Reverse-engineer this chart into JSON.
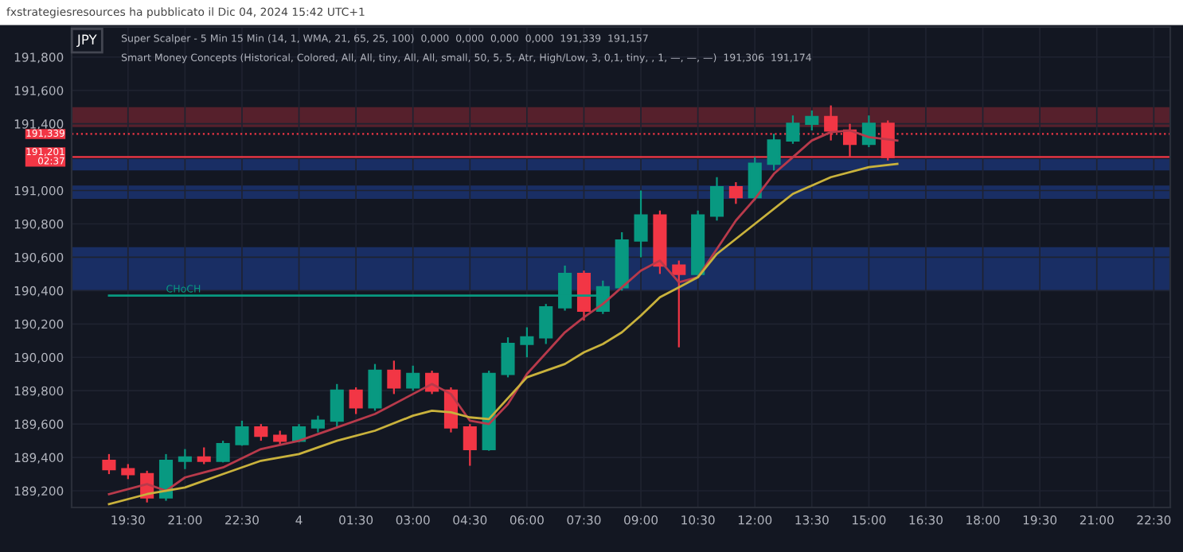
{
  "chart_data": {
    "type": "candlestick",
    "title": "JPY",
    "subtitle": "fxstrategiesresources ha pubblicato il Dic 04, 2024 15:42 UTC+1",
    "annotations": [
      "Super Scalper - 5 Min 15 Min (14, 1, WMA, 21, 65, 25, 100)  0,000  0,000  0,000  0,000  191,339  191,157",
      "Smart Money Concepts (Historical, Colored, All, All, tiny, All, All, small, 50, 5, 5, Atr, High/Low, 3, 0,1, tiny, , 1, —, —, —)  191,306  191,174",
      {
        "text": "CHoCH",
        "x": "2024-12-03T20:30",
        "y": 190370
      }
    ],
    "x": [
      "2024-12-03T19:00",
      "2024-12-03T19:30",
      "2024-12-03T20:00",
      "2024-12-03T20:30",
      "2024-12-03T21:00",
      "2024-12-03T21:30",
      "2024-12-03T22:00",
      "2024-12-03T22:30",
      "2024-12-03T23:00",
      "2024-12-03T23:30",
      "2024-12-04T00:00",
      "2024-12-04T00:30",
      "2024-12-04T01:00",
      "2024-12-04T01:30",
      "2024-12-04T02:00",
      "2024-12-04T02:30",
      "2024-12-04T03:00",
      "2024-12-04T03:30",
      "2024-12-04T04:00",
      "2024-12-04T04:30",
      "2024-12-04T05:00",
      "2024-12-04T05:30",
      "2024-12-04T06:00",
      "2024-12-04T06:30",
      "2024-12-04T07:00",
      "2024-12-04T07:30",
      "2024-12-04T08:00",
      "2024-12-04T08:30",
      "2024-12-04T09:00",
      "2024-12-04T09:30",
      "2024-12-04T10:00",
      "2024-12-04T10:30",
      "2024-12-04T11:00",
      "2024-12-04T11:30",
      "2024-12-04T12:00",
      "2024-12-04T12:30",
      "2024-12-04T13:00",
      "2024-12-04T13:30",
      "2024-12-04T14:00",
      "2024-12-04T14:30",
      "2024-12-04T15:00",
      "2024-12-04T15:30"
    ],
    "ohlc": [
      [
        189380,
        189420,
        189300,
        189330
      ],
      [
        189330,
        189360,
        189270,
        189300
      ],
      [
        189300,
        189320,
        189130,
        189160
      ],
      [
        189160,
        189420,
        189140,
        189380
      ],
      [
        189380,
        189450,
        189330,
        189400
      ],
      [
        189400,
        189460,
        189360,
        189380
      ],
      [
        189380,
        189500,
        189370,
        189480
      ],
      [
        189480,
        189620,
        189470,
        189580
      ],
      [
        189580,
        189600,
        189500,
        189530
      ],
      [
        189530,
        189560,
        189480,
        189500
      ],
      [
        189500,
        189600,
        189490,
        189580
      ],
      [
        189580,
        189650,
        189550,
        189620
      ],
      [
        189620,
        189840,
        189580,
        189800
      ],
      [
        189800,
        189820,
        189660,
        189700
      ],
      [
        189700,
        189960,
        189680,
        189920
      ],
      [
        189920,
        189980,
        189780,
        189820
      ],
      [
        189820,
        189950,
        189800,
        189900
      ],
      [
        189900,
        189920,
        189780,
        189800
      ],
      [
        189800,
        189820,
        189550,
        189580
      ],
      [
        189580,
        189600,
        189350,
        189450
      ],
      [
        189450,
        189920,
        189440,
        189900
      ],
      [
        189900,
        190120,
        189880,
        190080
      ],
      [
        190080,
        190180,
        190000,
        190120
      ],
      [
        190120,
        190320,
        190080,
        190300
      ],
      [
        190300,
        190550,
        190280,
        190500
      ],
      [
        190500,
        190520,
        190220,
        190280
      ],
      [
        190280,
        190460,
        190260,
        190420
      ],
      [
        190420,
        190750,
        190400,
        190700
      ],
      [
        190700,
        191000,
        190600,
        190850
      ],
      [
        190850,
        190880,
        190500,
        190550
      ],
      [
        190550,
        190580,
        190060,
        190500
      ],
      [
        190500,
        190880,
        190480,
        190850
      ],
      [
        190850,
        191080,
        190820,
        191020
      ],
      [
        191020,
        191050,
        190920,
        190960
      ],
      [
        190960,
        191200,
        190940,
        191160
      ],
      [
        191160,
        191340,
        191120,
        191300
      ],
      [
        191300,
        191450,
        191280,
        191400
      ],
      [
        191400,
        191480,
        191360,
        191440
      ],
      [
        191440,
        191510,
        191300,
        191360
      ],
      [
        191360,
        191400,
        191200,
        191280
      ],
      [
        191280,
        191450,
        191260,
        191400
      ],
      [
        191400,
        191420,
        191180,
        191201
      ]
    ],
    "colors": [
      "#f23645",
      "#f23645",
      "#f23645",
      "#089981",
      "#089981",
      "#f23645",
      "#089981",
      "#089981",
      "#f23645",
      "#f23645",
      "#089981",
      "#089981",
      "#089981",
      "#f23645",
      "#089981",
      "#f23645",
      "#089981",
      "#f23645",
      "#f23645",
      "#f23645",
      "#089981",
      "#089981",
      "#089981",
      "#089981",
      "#089981",
      "#f23645",
      "#089981",
      "#089981",
      "#089981",
      "#f23645",
      "#f23645",
      "#089981",
      "#089981",
      "#f23645",
      "#089981",
      "#089981",
      "#089981",
      "#089981",
      "#f23645",
      "#f23645",
      "#089981",
      "#f23645"
    ],
    "series": [
      {
        "type": "line",
        "color": "#b83a4b",
        "x": [
          "2024-12-03T19:00",
          "2024-12-03T20:00",
          "2024-12-03T20:30",
          "2024-12-03T21:00",
          "2024-12-03T22:00",
          "2024-12-03T23:00",
          "2024-12-04T00:00",
          "2024-12-04T01:00",
          "2024-12-04T02:00",
          "2024-12-04T03:00",
          "2024-12-04T03:30",
          "2024-12-04T04:00",
          "2024-12-04T04:30",
          "2024-12-04T05:00",
          "2024-12-04T05:30",
          "2024-12-04T06:00",
          "2024-12-04T07:00",
          "2024-12-04T07:30",
          "2024-12-04T08:00",
          "2024-12-04T08:30",
          "2024-12-04T09:00",
          "2024-12-04T09:30",
          "2024-12-04T10:00",
          "2024-12-04T10:30",
          "2024-12-04T11:00",
          "2024-12-04T11:30",
          "2024-12-04T12:00",
          "2024-12-04T12:30",
          "2024-12-04T13:00",
          "2024-12-04T13:30",
          "2024-12-04T14:00",
          "2024-12-04T14:30",
          "2024-12-04T15:00",
          "2024-12-04T15:45"
        ],
        "values": [
          189180,
          189240,
          189200,
          189280,
          189340,
          189450,
          189500,
          189580,
          189660,
          189780,
          189840,
          189780,
          189620,
          189600,
          189720,
          189900,
          190150,
          190240,
          190320,
          190420,
          190520,
          190580,
          190450,
          190480,
          190650,
          190820,
          190950,
          191100,
          191200,
          191300,
          191350,
          191360,
          191320,
          191300
        ]
      },
      {
        "type": "line",
        "color": "#c9b23c",
        "x": [
          "2024-12-03T19:00",
          "2024-12-03T20:00",
          "2024-12-03T21:00",
          "2024-12-03T22:00",
          "2024-12-03T23:00",
          "2024-12-04T00:00",
          "2024-12-04T01:00",
          "2024-12-04T02:00",
          "2024-12-04T03:00",
          "2024-12-04T03:30",
          "2024-12-04T04:00",
          "2024-12-04T04:30",
          "2024-12-04T05:00",
          "2024-12-04T06:00",
          "2024-12-04T07:00",
          "2024-12-04T07:30",
          "2024-12-04T08:00",
          "2024-12-04T08:30",
          "2024-12-04T09:00",
          "2024-12-04T09:30",
          "2024-12-04T10:00",
          "2024-12-04T10:30",
          "2024-12-04T11:00",
          "2024-12-04T12:00",
          "2024-12-04T13:00",
          "2024-12-04T14:00",
          "2024-12-04T15:00",
          "2024-12-04T15:45"
        ],
        "values": [
          189120,
          189180,
          189220,
          189300,
          189380,
          189420,
          189500,
          189560,
          189650,
          189680,
          189670,
          189640,
          189630,
          189880,
          189960,
          190030,
          190080,
          190150,
          190250,
          190360,
          190420,
          190480,
          190620,
          190800,
          190980,
          191080,
          191140,
          191160
        ]
      },
      {
        "type": "line",
        "color": "#089981",
        "x": [
          "2024-12-03T19:00",
          "2024-12-04T08:00"
        ],
        "values": [
          190370,
          190370
        ]
      }
    ],
    "ref_lines": [
      {
        "axis": "y",
        "value": 191339,
        "label": "191,339",
        "color": "#f23645",
        "line_style": "dotted"
      },
      {
        "axis": "y",
        "value": 191201,
        "label": "191,201\n02:37",
        "color": "#f23645",
        "line_style": "solid"
      }
    ],
    "bands": [
      {
        "axis": "y",
        "from": 191380,
        "to": 191500,
        "color": "#f23645"
      },
      {
        "axis": "y",
        "from": 191120,
        "to": 191190,
        "color": "#2962ff"
      },
      {
        "axis": "y",
        "from": 190950,
        "to": 191030,
        "color": "#2962ff"
      },
      {
        "axis": "y",
        "from": 190400,
        "to": 190660,
        "color": "#2962ff"
      }
    ],
    "xlim": [
      "2024-12-03T18:01",
      "2024-12-04T22:56"
    ],
    "xticks": [
      {
        "value": "2024-12-03T19:30",
        "label": "19:30"
      },
      {
        "value": "2024-12-03T21:00",
        "label": "21:00"
      },
      {
        "value": "2024-12-03T22:30",
        "label": "22:30"
      },
      {
        "value": "2024-12-04T00:00",
        "label": "4"
      },
      {
        "value": "2024-12-04T01:30",
        "label": "01:30"
      },
      {
        "value": "2024-12-04T03:00",
        "label": "03:00"
      },
      {
        "value": "2024-12-04T04:30",
        "label": "04:30"
      },
      {
        "value": "2024-12-04T06:00",
        "label": "06:00"
      },
      {
        "value": "2024-12-04T07:30",
        "label": "07:30"
      },
      {
        "value": "2024-12-04T09:00",
        "label": "09:00"
      },
      {
        "value": "2024-12-04T10:30",
        "label": "10:30"
      },
      {
        "value": "2024-12-04T12:00",
        "label": "12:00"
      },
      {
        "value": "2024-12-04T13:30",
        "label": "13:30"
      },
      {
        "value": "2024-12-04T15:00",
        "label": "15:00"
      },
      {
        "value": "2024-12-04T16:30",
        "label": "16:30"
      },
      {
        "value": "2024-12-04T18:00",
        "label": "18:00"
      },
      {
        "value": "2024-12-04T19:30",
        "label": "19:30"
      },
      {
        "value": "2024-12-04T21:00",
        "label": "21:00"
      },
      {
        "value": "2024-12-04T22:30",
        "label": "22:30"
      }
    ],
    "ylim": [
      189100,
      191980
    ],
    "yticks": [
      {
        "value": 189200,
        "label": "189,200"
      },
      {
        "value": 189400,
        "label": "189,400"
      },
      {
        "value": 189600,
        "label": "189,600"
      },
      {
        "value": 189800,
        "label": "189,800"
      },
      {
        "value": 190000,
        "label": "190,000"
      },
      {
        "value": 190200,
        "label": "190,200"
      },
      {
        "value": 190400,
        "label": "190,400"
      },
      {
        "value": 190600,
        "label": "190,600"
      },
      {
        "value": 190800,
        "label": "190,800"
      },
      {
        "value": 191000,
        "label": "191,000"
      },
      {
        "value": 191200,
        "label": null
      },
      {
        "value": 191400,
        "label": "191,400"
      },
      {
        "value": 191600,
        "label": "191,600"
      },
      {
        "value": 191800,
        "label": "191,800"
      }
    ],
    "grid": true
  }
}
